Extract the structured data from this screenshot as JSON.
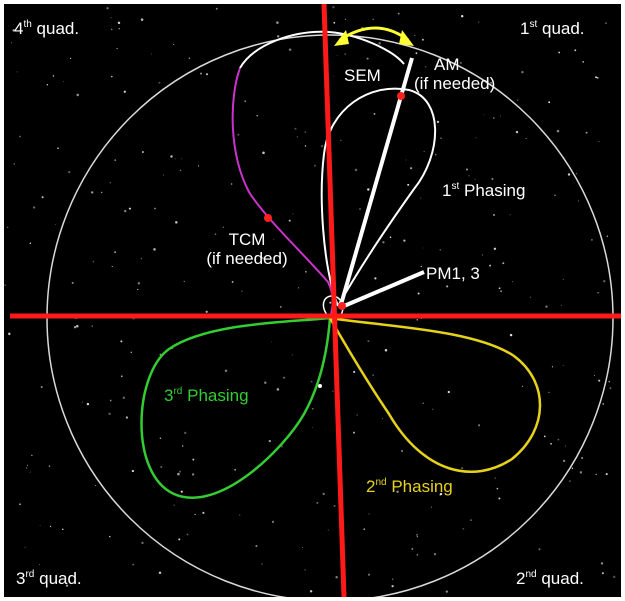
{
  "colors": {
    "background": "#000000",
    "axes": "#ff1a1a",
    "orbit_circle": "#d9d9d9",
    "first_phasing": "#ffffff",
    "transfer_arc": "#cc33cc",
    "second_phasing": "#e6d21a",
    "third_phasing": "#33cc33",
    "sem_arrow": "#ffff33",
    "maneuver_point": "#ff2020",
    "sun_line": "#ffffff"
  },
  "quadrants": {
    "q4": {
      "num": "4",
      "suffix": "th",
      "text": "quad."
    },
    "q1": {
      "num": "1",
      "suffix": "st",
      "text": "quad."
    },
    "q3": {
      "num": "3",
      "suffix": "rd",
      "text": "quad."
    },
    "q2": {
      "num": "2",
      "suffix": "nd",
      "text": "quad."
    }
  },
  "labels": {
    "sem": "SEM",
    "am": "AM",
    "am_note": "(if needed)",
    "tcm": "TCM",
    "tcm_note": "(if needed)",
    "pm": "PM1, 3"
  },
  "phasing": {
    "first": {
      "num": "1",
      "suffix": "st",
      "text": "Phasing"
    },
    "second": {
      "num": "2",
      "suffix": "nd",
      "text": "Phasing"
    },
    "third": {
      "num": "3",
      "suffix": "rd",
      "text": "Phasing"
    }
  }
}
